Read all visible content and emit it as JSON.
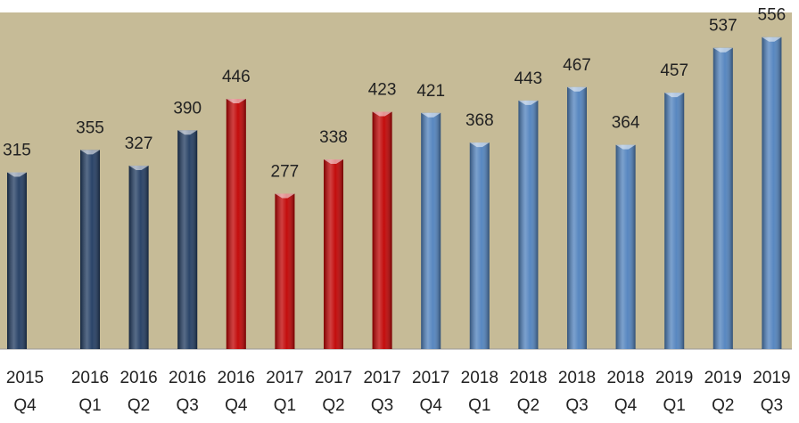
{
  "chart_data": {
    "type": "bar",
    "categories": [
      [
        "2015",
        "Q4"
      ],
      [
        "2016",
        "Q1"
      ],
      [
        "2016",
        "Q2"
      ],
      [
        "2016",
        "Q3"
      ],
      [
        "2016",
        "Q4"
      ],
      [
        "2017",
        "Q1"
      ],
      [
        "2017",
        "Q2"
      ],
      [
        "2017",
        "Q3"
      ],
      [
        "2017",
        "Q4"
      ],
      [
        "2018",
        "Q1"
      ],
      [
        "2018",
        "Q2"
      ],
      [
        "2018",
        "Q3"
      ],
      [
        "2018",
        "Q4"
      ],
      [
        "2019",
        "Q1"
      ],
      [
        "2019",
        "Q2"
      ],
      [
        "2019",
        "Q3"
      ]
    ],
    "values": [
      315,
      355,
      327,
      390,
      446,
      277,
      338,
      423,
      421,
      368,
      443,
      467,
      364,
      457,
      537,
      556
    ],
    "colors": [
      "#1f3a60",
      "#1f3a60",
      "#1f3a60",
      "#1f3a60",
      "#c00000",
      "#c00000",
      "#c00000",
      "#c00000",
      "#4f81bd",
      "#4f81bd",
      "#4f81bd",
      "#4f81bd",
      "#4f81bd",
      "#4f81bd",
      "#4f81bd",
      "#4f81bd"
    ],
    "ylim": [
      0,
      600
    ]
  }
}
